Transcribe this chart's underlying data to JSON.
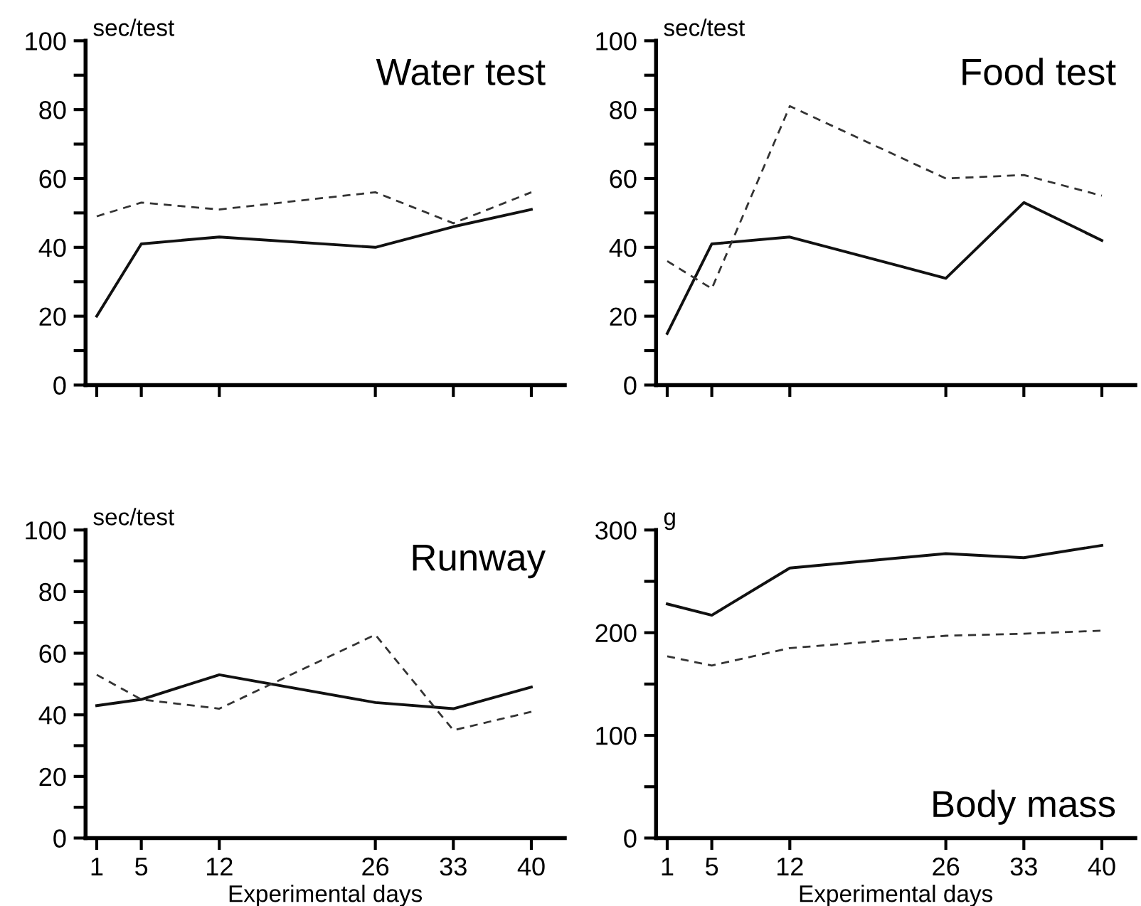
{
  "chart_data": [
    {
      "type": "line",
      "title": "Water test",
      "ylabel": "sec/test",
      "x": [
        1,
        5,
        12,
        26,
        33,
        40
      ],
      "xlim": [
        0,
        43
      ],
      "xticks": [
        1,
        5,
        12,
        26,
        33,
        40
      ],
      "ylim": [
        0,
        100
      ],
      "yticks": [
        0,
        {
          "value": 10,
          "label": null
        },
        20,
        {
          "value": 30,
          "label": null
        },
        40,
        {
          "value": 50,
          "label": null
        },
        60,
        {
          "value": 70,
          "label": null
        },
        80,
        {
          "value": 90,
          "label": null
        },
        100
      ],
      "tick_labels": "y",
      "grid": false,
      "legend": false,
      "series": [
        {
          "color": "#111111",
          "line_style": "solid",
          "values": [
            20,
            41,
            43,
            40,
            46,
            51
          ]
        },
        {
          "color": "#333333",
          "line_style": "dashed",
          "values": [
            49,
            53,
            51,
            56,
            47,
            56
          ]
        }
      ]
    },
    {
      "type": "line",
      "title": "Food test",
      "ylabel": "sec/test",
      "x": [
        1,
        5,
        12,
        26,
        33,
        40
      ],
      "xlim": [
        0,
        43
      ],
      "xticks": [
        1,
        5,
        12,
        26,
        33,
        40
      ],
      "ylim": [
        0,
        100
      ],
      "yticks": [
        0,
        {
          "value": 10,
          "label": null
        },
        20,
        {
          "value": 30,
          "label": null
        },
        40,
        {
          "value": 50,
          "label": null
        },
        60,
        {
          "value": 70,
          "label": null
        },
        80,
        {
          "value": 90,
          "label": null
        },
        100
      ],
      "tick_labels": "y",
      "grid": false,
      "legend": false,
      "series": [
        {
          "color": "#111111",
          "line_style": "solid",
          "values": [
            15,
            41,
            43,
            31,
            53,
            42
          ]
        },
        {
          "color": "#333333",
          "line_style": "dashed",
          "values": [
            36,
            28,
            81,
            60,
            61,
            55
          ]
        }
      ]
    },
    {
      "type": "line",
      "title": "Runway",
      "ylabel": "sec/test",
      "xlabel": "Experimental days",
      "x": [
        1,
        5,
        12,
        26,
        33,
        40
      ],
      "xlim": [
        0,
        43
      ],
      "xticks": [
        1,
        5,
        12,
        26,
        33,
        40
      ],
      "ylim": [
        0,
        100
      ],
      "yticks": [
        0,
        {
          "value": 10,
          "label": null
        },
        20,
        {
          "value": 30,
          "label": null
        },
        40,
        {
          "value": 50,
          "label": null
        },
        60,
        {
          "value": 70,
          "label": null
        },
        80,
        {
          "value": 90,
          "label": null
        },
        100
      ],
      "grid": false,
      "legend": false,
      "series": [
        {
          "color": "#111111",
          "line_style": "solid",
          "values": [
            43,
            45,
            53,
            44,
            42,
            49
          ]
        },
        {
          "color": "#333333",
          "line_style": "dashed",
          "values": [
            53,
            45,
            42,
            66,
            35,
            41
          ]
        }
      ]
    },
    {
      "type": "line",
      "title": "Body mass",
      "ylabel": "g",
      "xlabel": "Experimental days",
      "x": [
        1,
        5,
        12,
        26,
        33,
        40
      ],
      "xlim": [
        0,
        43
      ],
      "xticks": [
        1,
        5,
        12,
        26,
        33,
        40
      ],
      "ylim": [
        0,
        300
      ],
      "yticks": [
        0,
        {
          "value": 50,
          "label": null
        },
        100,
        {
          "value": 150,
          "label": null
        },
        200,
        {
          "value": 250,
          "label": null
        },
        300
      ],
      "grid": false,
      "legend": false,
      "series": [
        {
          "color": "#111111",
          "line_style": "solid",
          "values": [
            228,
            217,
            263,
            277,
            273,
            285
          ]
        },
        {
          "color": "#333333",
          "line_style": "dashed",
          "values": [
            177,
            168,
            185,
            197,
            199,
            202
          ]
        }
      ]
    }
  ]
}
